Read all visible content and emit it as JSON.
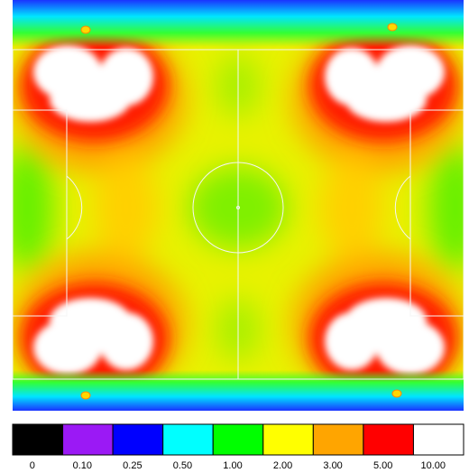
{
  "legend": {
    "items": [
      {
        "label": "0",
        "color": "#000000"
      },
      {
        "label": "0.10",
        "color": "#9b19f5"
      },
      {
        "label": "0.25",
        "color": "#0000ff"
      },
      {
        "label": "0.50",
        "color": "#00ffff"
      },
      {
        "label": "1.00",
        "color": "#00ff00"
      },
      {
        "label": "2.00",
        "color": "#ffff00"
      },
      {
        "label": "3.00",
        "color": "#ffa500"
      },
      {
        "label": "5.00",
        "color": "#ff0000"
      },
      {
        "label": "10.00",
        "color": "#ffffff"
      }
    ]
  },
  "pitch": {
    "line_color": "#f5f5f5",
    "background_base": "#f2f200"
  }
}
